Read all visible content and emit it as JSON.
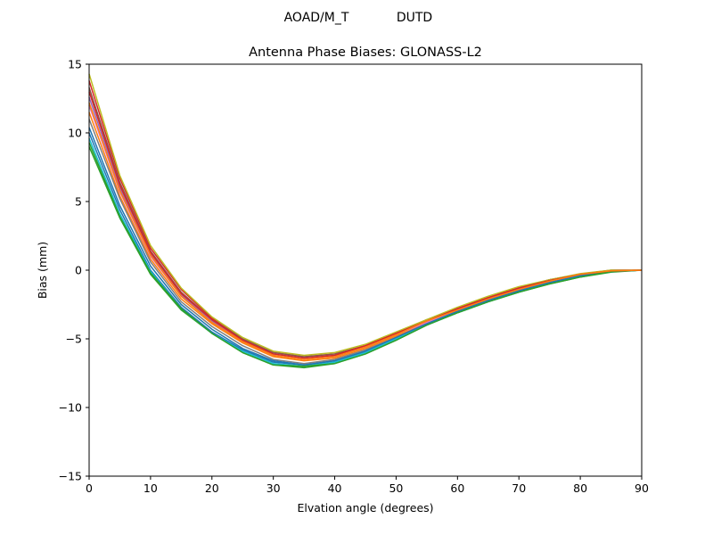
{
  "figure": {
    "suptitle_left": "AOAD/M_T",
    "suptitle_right": "DUTD"
  },
  "chart_data": {
    "type": "line",
    "title": "Antenna Phase Biases: GLONASS-L2",
    "xlabel": "Elvation angle (degrees)",
    "ylabel": "Bias (mm)",
    "xlim": [
      0,
      90
    ],
    "ylim": [
      -15,
      15
    ],
    "xticks": [
      0,
      10,
      20,
      30,
      40,
      50,
      60,
      70,
      80,
      90
    ],
    "yticks": [
      -15,
      -10,
      -5,
      0,
      5,
      10,
      15
    ],
    "ytick_labels": [
      "−15",
      "−10",
      "−5",
      "0",
      "5",
      "10",
      "15"
    ],
    "grid": false,
    "legend": "none",
    "x": [
      0,
      5,
      10,
      15,
      20,
      25,
      30,
      35,
      40,
      45,
      50,
      55,
      60,
      65,
      70,
      75,
      80,
      85,
      90
    ],
    "series": [
      {
        "color": "#1f77b4",
        "values": [
          10.0,
          4.4,
          0.0,
          -2.7,
          -4.5,
          -5.8,
          -6.7,
          -6.9,
          -6.6,
          -5.9,
          -4.9,
          -3.9,
          -3.0,
          -2.2,
          -1.5,
          -0.9,
          -0.4,
          -0.1,
          0.0
        ]
      },
      {
        "color": "#ff7f0e",
        "values": [
          11.5,
          5.4,
          0.8,
          -2.1,
          -3.9,
          -5.3,
          -6.3,
          -6.6,
          -6.4,
          -5.7,
          -4.8,
          -3.8,
          -2.9,
          -2.1,
          -1.4,
          -0.8,
          -0.3,
          -0.05,
          0.0
        ]
      },
      {
        "color": "#2ca02c",
        "values": [
          9.0,
          3.8,
          -0.3,
          -2.9,
          -4.6,
          -6.0,
          -6.9,
          -7.1,
          -6.8,
          -6.1,
          -5.1,
          -4.0,
          -3.1,
          -2.3,
          -1.6,
          -1.0,
          -0.5,
          -0.15,
          0.0
        ]
      },
      {
        "color": "#d62728",
        "values": [
          13.8,
          6.7,
          1.6,
          -1.4,
          -3.5,
          -5.0,
          -6.0,
          -6.3,
          -6.1,
          -5.5,
          -4.6,
          -3.7,
          -2.8,
          -2.0,
          -1.3,
          -0.7,
          -0.3,
          0.0,
          0.0
        ]
      },
      {
        "color": "#9467bd",
        "values": [
          12.6,
          6.0,
          1.2,
          -1.8,
          -3.7,
          -5.1,
          -6.1,
          -6.4,
          -6.2,
          -5.6,
          -4.7,
          -3.7,
          -2.8,
          -2.0,
          -1.3,
          -0.7,
          -0.3,
          0.0,
          0.0
        ]
      },
      {
        "color": "#8c564b",
        "values": [
          13.3,
          6.4,
          1.4,
          -1.6,
          -3.6,
          -5.0,
          -6.0,
          -6.3,
          -6.1,
          -5.5,
          -4.6,
          -3.6,
          -2.8,
          -2.0,
          -1.3,
          -0.7,
          -0.3,
          -0.05,
          0.0
        ]
      },
      {
        "color": "#e377c2",
        "values": [
          12.0,
          5.7,
          1.0,
          -1.9,
          -3.8,
          -5.2,
          -6.2,
          -6.5,
          -6.3,
          -5.6,
          -4.7,
          -3.8,
          -2.9,
          -2.1,
          -1.4,
          -0.8,
          -0.35,
          -0.05,
          0.0
        ]
      },
      {
        "color": "#7f7f7f",
        "values": [
          11.0,
          5.2,
          0.6,
          -2.3,
          -4.1,
          -5.5,
          -6.5,
          -6.8,
          -6.5,
          -5.8,
          -4.9,
          -3.9,
          -3.0,
          -2.2,
          -1.5,
          -0.9,
          -0.4,
          -0.1,
          0.0
        ]
      },
      {
        "color": "#bcbd22",
        "values": [
          14.3,
          6.9,
          1.8,
          -1.3,
          -3.4,
          -4.9,
          -5.9,
          -6.2,
          -6.0,
          -5.4,
          -4.5,
          -3.6,
          -2.7,
          -1.9,
          -1.2,
          -0.7,
          -0.25,
          0.0,
          0.0
        ]
      },
      {
        "color": "#17becf",
        "values": [
          9.6,
          4.1,
          -0.1,
          -2.8,
          -4.6,
          -5.9,
          -6.8,
          -7.0,
          -6.7,
          -6.0,
          -5.0,
          -4.0,
          -3.1,
          -2.3,
          -1.6,
          -0.95,
          -0.45,
          -0.1,
          0.0
        ]
      },
      {
        "color": "#1f77b4",
        "values": [
          10.4,
          4.7,
          0.3,
          -2.5,
          -4.3,
          -5.7,
          -6.6,
          -6.9,
          -6.6,
          -5.9,
          -4.9,
          -3.9,
          -3.0,
          -2.2,
          -1.5,
          -0.9,
          -0.4,
          -0.1,
          0.0
        ]
      },
      {
        "color": "#2ca02c",
        "values": [
          9.3,
          3.9,
          -0.2,
          -2.8,
          -4.6,
          -6.0,
          -6.9,
          -7.0,
          -6.8,
          -6.1,
          -5.1,
          -4.0,
          -3.1,
          -2.3,
          -1.6,
          -1.0,
          -0.5,
          -0.1,
          0.0
        ]
      },
      {
        "color": "#d62728",
        "values": [
          13.0,
          6.2,
          1.3,
          -1.7,
          -3.6,
          -5.1,
          -6.1,
          -6.4,
          -6.2,
          -5.5,
          -4.6,
          -3.7,
          -2.8,
          -2.0,
          -1.3,
          -0.75,
          -0.3,
          -0.05,
          0.0
        ]
      },
      {
        "color": "#ff7f0e",
        "values": [
          12.2,
          5.8,
          1.1,
          -1.9,
          -3.8,
          -5.2,
          -6.2,
          -6.5,
          -6.3,
          -5.6,
          -4.7,
          -3.7,
          -2.9,
          -2.1,
          -1.4,
          -0.8,
          -0.3,
          -0.05,
          0.0
        ]
      }
    ]
  }
}
